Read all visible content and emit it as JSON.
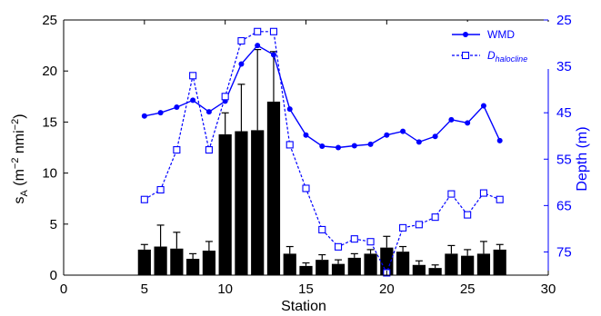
{
  "chart_data": {
    "type": "bar+line",
    "xlabel": "Station",
    "ylabel_left": "sA (m−2 nmi−2)",
    "ylabel_left_parts": {
      "main": "s",
      "sub": "A",
      "open": " (m",
      "sup1": "−2",
      "mid": " nmi",
      "sup2": "−2",
      "close": ")"
    },
    "ylabel_right": "Depth (m)",
    "xlim": [
      0,
      30
    ],
    "ylim_left": [
      0,
      25
    ],
    "ylim_right": [
      80,
      25
    ],
    "x_ticks": [
      0,
      5,
      10,
      15,
      20,
      25,
      30
    ],
    "y_left_ticks": [
      0,
      5,
      10,
      15,
      20,
      25
    ],
    "y_right_ticks": [
      25,
      35,
      45,
      55,
      65,
      75
    ],
    "right_axis_color": "#0000ff",
    "bar_color": "#000000",
    "legend_position": "top-right",
    "bars": {
      "x": [
        5,
        6,
        7,
        8,
        9,
        10,
        11,
        12,
        13,
        14,
        15,
        16,
        17,
        18,
        19,
        20,
        21,
        22,
        23,
        24,
        25,
        26,
        27
      ],
      "values": [
        2.5,
        2.8,
        2.6,
        1.6,
        2.4,
        13.8,
        14.1,
        14.2,
        17.0,
        2.1,
        0.9,
        1.5,
        1.1,
        1.7,
        2.1,
        2.7,
        2.3,
        1.0,
        0.7,
        2.1,
        1.9,
        2.1,
        2.5
      ],
      "err": [
        0.5,
        2.1,
        1.6,
        0.5,
        0.9,
        2.1,
        4.6,
        7.9,
        4.9,
        0.7,
        0.3,
        0.5,
        0.4,
        0.4,
        0.4,
        1.1,
        0.5,
        0.4,
        0.3,
        0.8,
        0.6,
        1.2,
        0.5
      ]
    },
    "series": [
      {
        "name": "WMD",
        "style": "solid",
        "marker": "filled-circle",
        "color": "#0000ff",
        "x": [
          5,
          6,
          7,
          8,
          9,
          10,
          11,
          12,
          13,
          14,
          15,
          16,
          17,
          18,
          19,
          20,
          21,
          22,
          23,
          24,
          25,
          26,
          27
        ],
        "values": [
          45.7,
          45.0,
          43.8,
          42.3,
          44.8,
          42.5,
          34.5,
          30.5,
          32.5,
          44.2,
          49.8,
          52.2,
          52.5,
          52.1,
          51.8,
          49.8,
          49.0,
          51.3,
          50.1,
          46.5,
          47.2,
          43.5,
          51.0
        ]
      },
      {
        "name": "D",
        "name_sub": "halocline",
        "style": "dashed",
        "marker": "open-square",
        "color": "#0000ff",
        "x": [
          5,
          6,
          7,
          8,
          9,
          10,
          11,
          12,
          13,
          14,
          15,
          16,
          17,
          18,
          19,
          20,
          21,
          22,
          23,
          24,
          25,
          26,
          27
        ],
        "values": [
          63.7,
          61.6,
          53.0,
          37.0,
          53.0,
          41.5,
          29.5,
          27.5,
          27.5,
          51.9,
          61.3,
          70.2,
          73.9,
          72.2,
          72.8,
          79.5,
          69.8,
          69.1,
          67.5,
          62.5,
          67.0,
          62.3,
          63.7
        ]
      }
    ]
  }
}
